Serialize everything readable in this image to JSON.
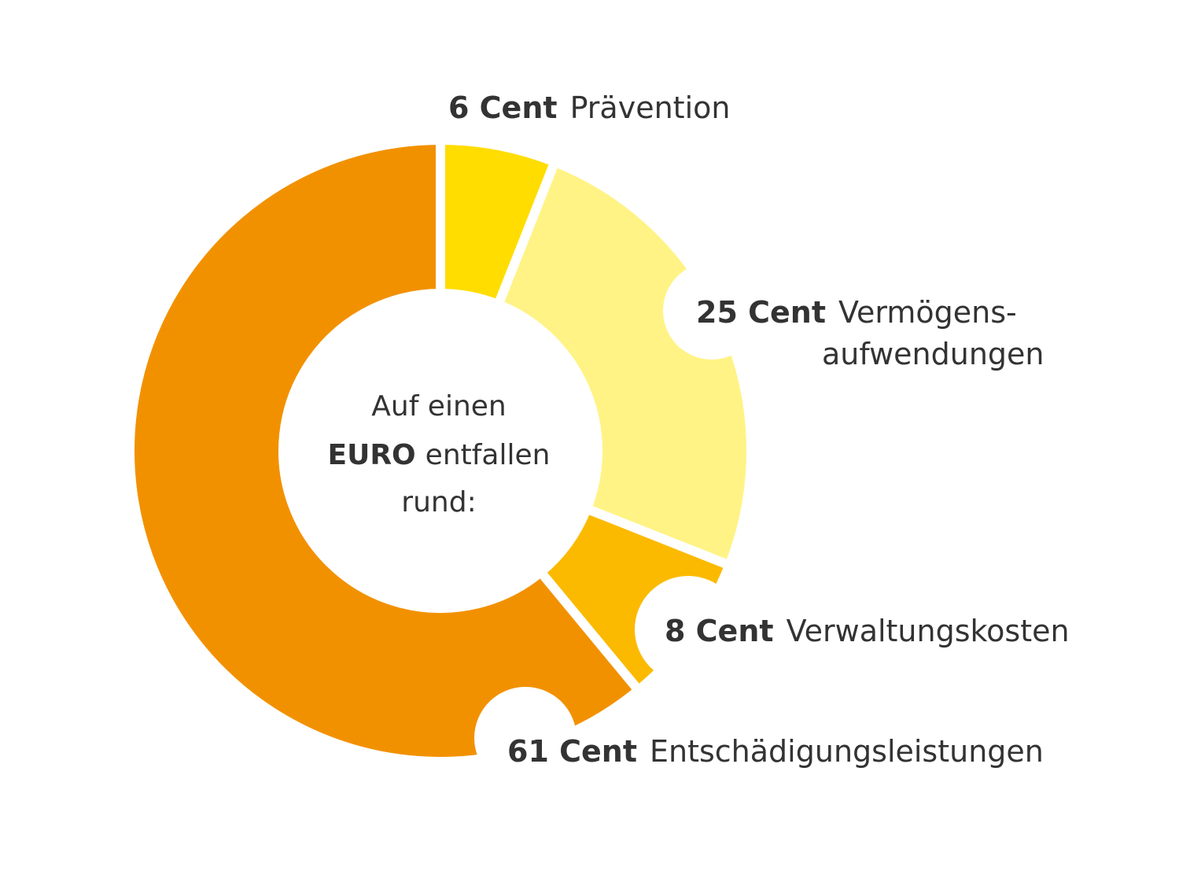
{
  "chart_data": {
    "type": "pie",
    "center_text": {
      "line1": "Auf einen",
      "line2_bold": "EURO",
      "line2_rest": "entfallen",
      "line3": "rund:"
    },
    "slices": [
      {
        "value": 6,
        "value_label": "6 Cent",
        "label_lines": [
          "Prävention"
        ],
        "color": "#FFDD00"
      },
      {
        "value": 25,
        "value_label": "25 Cent",
        "label_lines": [
          "Vermögens-",
          "aufwendungen"
        ],
        "color": "#FFF385"
      },
      {
        "value": 8,
        "value_label": "8 Cent",
        "label_lines": [
          "Verwaltungskosten"
        ],
        "color": "#FBBA00"
      },
      {
        "value": 61,
        "value_label": "61 Cent",
        "label_lines": [
          "Entschädigungsleistungen"
        ],
        "color": "#F29100"
      }
    ]
  }
}
